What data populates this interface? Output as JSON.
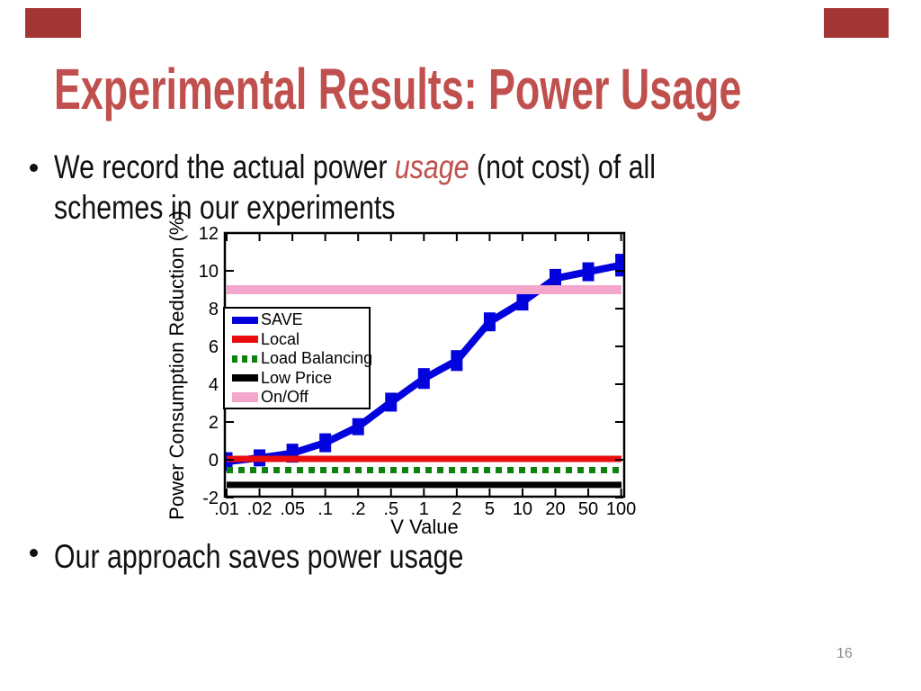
{
  "slide": {
    "title": "Experimental Results: Power Usage",
    "bullet1": {
      "before": "We record the actual power ",
      "highlight": "usage",
      "after": " (not cost) of all schemes in our experiments"
    },
    "bullet2": "Our approach saves power usage",
    "page_number": "16"
  },
  "colors": {
    "title-red": "#C0504D",
    "corner-red": "#A33634",
    "text-black": "#111111",
    "page-gray": "#8C8C8C"
  },
  "chart_data": {
    "type": "line",
    "title": "",
    "xlabel": "V Value",
    "ylabel": "Power Consumption Reduction (%)",
    "x_scale": "log",
    "categories": [
      ".01",
      ".02",
      ".05",
      ".1",
      ".2",
      ".5",
      "1",
      "2",
      "5",
      "10",
      "20",
      "50",
      "100"
    ],
    "x_values": [
      0.01,
      0.02,
      0.05,
      0.1,
      0.2,
      0.5,
      1,
      2,
      5,
      10,
      20,
      50,
      100
    ],
    "ylim": [
      -2,
      12
    ],
    "y_ticks": [
      -2,
      0,
      2,
      4,
      6,
      8,
      10,
      12
    ],
    "grid": false,
    "legend_position": "upper-left",
    "series": [
      {
        "name": "SAVE",
        "type": "curve",
        "color": "#0202DD",
        "values": [
          -0.1,
          0.1,
          0.35,
          0.9,
          1.75,
          3.05,
          4.3,
          5.25,
          7.3,
          8.35,
          9.6,
          9.95,
          10.3
        ],
        "errors": [
          0.5,
          0.45,
          0.5,
          0.5,
          0.45,
          0.5,
          0.55,
          0.55,
          0.5,
          0.45,
          0.5,
          0.5,
          0.6
        ]
      },
      {
        "name": "Local",
        "type": "hline",
        "value": 0.05,
        "color": "#EB0D0D",
        "thickness": 7,
        "sample_h": 8
      },
      {
        "name": "Load Balancing",
        "type": "hline",
        "value": -0.55,
        "color": "#0E820E",
        "thickness": 7,
        "dash": true,
        "sample_h": 8
      },
      {
        "name": "Low Price",
        "type": "hline",
        "value": -1.33,
        "color": "#000000",
        "thickness": 7,
        "sample_h": 8
      },
      {
        "name": "On/Off",
        "type": "hline",
        "value": 9.0,
        "color": "#F3A5CB",
        "thickness": 10,
        "sample_h": 11
      }
    ]
  }
}
